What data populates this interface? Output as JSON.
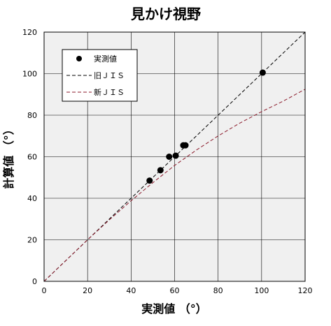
{
  "chart_data": {
    "type": "scatter",
    "title": "見かけ視野",
    "xlabel": "実測値 （°）",
    "ylabel": "計算値 （°）",
    "xlim": [
      0,
      120
    ],
    "ylim": [
      0,
      120
    ],
    "x_ticks": [
      "0",
      "20",
      "40",
      "60",
      "80",
      "100",
      "120"
    ],
    "y_ticks": [
      "0",
      "20",
      "40",
      "60",
      "80",
      "100",
      "120"
    ],
    "grid": true,
    "legend_position": "top-left",
    "series": [
      {
        "name": "実測値",
        "kind": "scatter",
        "color": "#000000",
        "points": [
          [
            48.5,
            48.5
          ],
          [
            53.5,
            53.5
          ],
          [
            57.5,
            60
          ],
          [
            60.5,
            60.5
          ],
          [
            64,
            65.5
          ],
          [
            65,
            65.5
          ],
          [
            100.5,
            100.5
          ]
        ]
      },
      {
        "name": "旧ＪＩＳ",
        "kind": "line",
        "style": "dashed",
        "color": "#000000",
        "points": [
          [
            0,
            0
          ],
          [
            120,
            120
          ]
        ]
      },
      {
        "name": "新ＪＩＳ",
        "kind": "line",
        "style": "dashed",
        "color": "#8b1a2b",
        "points": [
          [
            0,
            0
          ],
          [
            10,
            10
          ],
          [
            20,
            20
          ],
          [
            30,
            29.6
          ],
          [
            40,
            38.8
          ],
          [
            50,
            47.5
          ],
          [
            60,
            55.8
          ],
          [
            70,
            63.2
          ],
          [
            80,
            70
          ],
          [
            90,
            76.2
          ],
          [
            100,
            81.7
          ],
          [
            110,
            86.8
          ],
          [
            120,
            92.5
          ]
        ]
      }
    ]
  }
}
